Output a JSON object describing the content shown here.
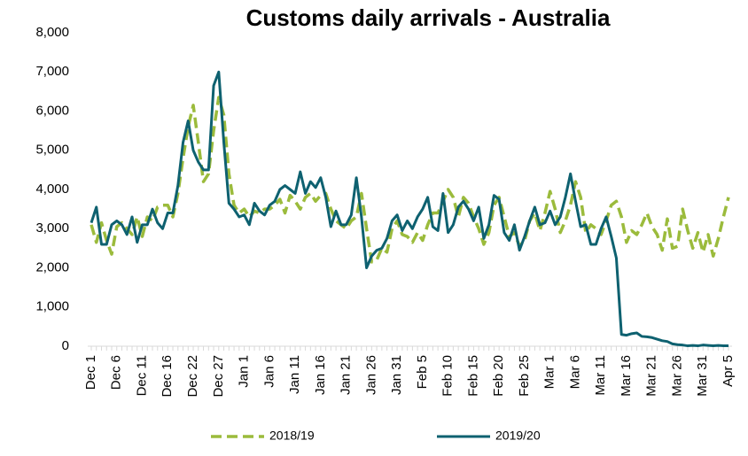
{
  "chart_data": {
    "type": "line",
    "title": "Customs daily arrivals - Australia",
    "categories": [
      "Dec 1",
      null,
      null,
      null,
      null,
      "Dec 6",
      null,
      null,
      null,
      null,
      "Dec 11",
      null,
      null,
      null,
      null,
      "Dec 16",
      null,
      null,
      null,
      null,
      "Dec 22",
      null,
      null,
      null,
      null,
      "Dec 27",
      null,
      null,
      null,
      null,
      "Jan 1",
      null,
      null,
      null,
      null,
      "Jan 6",
      null,
      null,
      null,
      null,
      "Jan 11",
      null,
      null,
      null,
      null,
      "Jan 16",
      null,
      null,
      null,
      null,
      "Jan 21",
      null,
      null,
      null,
      null,
      "Jan 26",
      null,
      null,
      null,
      null,
      "Jan 31",
      null,
      null,
      null,
      null,
      "Feb 5",
      null,
      null,
      null,
      null,
      "Feb 10",
      null,
      null,
      null,
      null,
      "Feb 15",
      null,
      null,
      null,
      null,
      "Feb 20",
      null,
      null,
      null,
      null,
      "Feb 25",
      null,
      null,
      null,
      null,
      "Mar 1",
      null,
      null,
      null,
      null,
      "Mar 6",
      null,
      null,
      null,
      null,
      "Mar 11",
      null,
      null,
      null,
      null,
      "Mar 16",
      null,
      null,
      null,
      null,
      "Mar 21",
      null,
      null,
      null,
      null,
      "Mar 26",
      null,
      null,
      null,
      null,
      "Mar 31",
      null,
      null,
      null,
      null,
      "Apr 5"
    ],
    "series": [
      {
        "name": "2018/19",
        "color": "#9bbb3c",
        "dash": true,
        "values": [
          3100,
          2650,
          3150,
          2700,
          2350,
          3050,
          3150,
          3000,
          2850,
          3300,
          2800,
          3300,
          3200,
          3550,
          3600,
          3600,
          3300,
          3900,
          4800,
          5600,
          6150,
          5200,
          4200,
          4400,
          5500,
          6350,
          5900,
          4400,
          3600,
          3400,
          3500,
          3300,
          3450,
          3400,
          3500,
          3500,
          3600,
          3750,
          3400,
          3850,
          3700,
          3500,
          3800,
          3900,
          3700,
          3850,
          3900,
          3500,
          3200,
          3100,
          3000,
          3200,
          3300,
          3900,
          3000,
          2150,
          2200,
          2500,
          2400,
          3000,
          3200,
          2850,
          2800,
          2650,
          2900,
          2700,
          3100,
          3400,
          3400,
          3700,
          4000,
          3800,
          3300,
          3800,
          3650,
          3300,
          3000,
          2600,
          2900,
          3600,
          3800,
          3300,
          2800,
          2900,
          2550,
          2700,
          3200,
          3400,
          2950,
          3400,
          3950,
          3500,
          2900,
          3200,
          3600,
          4200,
          3800,
          2900,
          3100,
          3000,
          2850,
          3200,
          3600,
          3700,
          3300,
          2650,
          2950,
          2850,
          3100,
          3400,
          3050,
          2850,
          2450,
          3250,
          2500,
          2550,
          3500,
          2950,
          2500,
          2900,
          2400,
          2850,
          2300,
          2750,
          3300,
          3800
        ]
      },
      {
        "name": "2019/20",
        "color": "#0e6170",
        "dash": false,
        "values": [
          3150,
          3550,
          2600,
          2600,
          3100,
          3200,
          3100,
          2850,
          3300,
          2650,
          3100,
          3100,
          3500,
          3150,
          3000,
          3400,
          3400,
          4100,
          5200,
          5750,
          5000,
          4700,
          4500,
          4500,
          6650,
          7000,
          5200,
          3650,
          3500,
          3300,
          3350,
          3100,
          3650,
          3450,
          3350,
          3600,
          3700,
          4000,
          4100,
          4000,
          3900,
          4450,
          3900,
          4200,
          4050,
          4300,
          3800,
          3050,
          3450,
          3100,
          3100,
          3350,
          4300,
          3300,
          2000,
          2300,
          2450,
          2500,
          2750,
          3200,
          3350,
          2950,
          3200,
          3000,
          3300,
          3500,
          3800,
          3050,
          2950,
          3900,
          2900,
          3100,
          3550,
          3700,
          3500,
          3200,
          3550,
          2750,
          3100,
          3850,
          3750,
          2900,
          2700,
          3100,
          2450,
          2800,
          3200,
          3550,
          3100,
          3150,
          3450,
          3100,
          3300,
          3800,
          4400,
          3700,
          3050,
          3100,
          2600,
          2600,
          3000,
          3300,
          2800,
          2250,
          300,
          280,
          320,
          340,
          250,
          240,
          220,
          180,
          140,
          120,
          60,
          40,
          30,
          10,
          20,
          10,
          30,
          20,
          10,
          20,
          10,
          10
        ]
      }
    ],
    "ylim": [
      0,
      8000
    ],
    "yticks": [
      0,
      {
        "value": 1000,
        "label": "1,000"
      },
      {
        "value": 2000,
        "label": "2,000"
      },
      {
        "value": 3000,
        "label": "3,000"
      },
      {
        "value": 4000,
        "label": "4,000"
      },
      {
        "value": 5000,
        "label": "5,000"
      },
      {
        "value": 6000,
        "label": "6,000"
      },
      {
        "value": 7000,
        "label": "7,000"
      },
      {
        "value": 8000,
        "label": "8,000"
      }
    ],
    "legend": "bottom"
  }
}
